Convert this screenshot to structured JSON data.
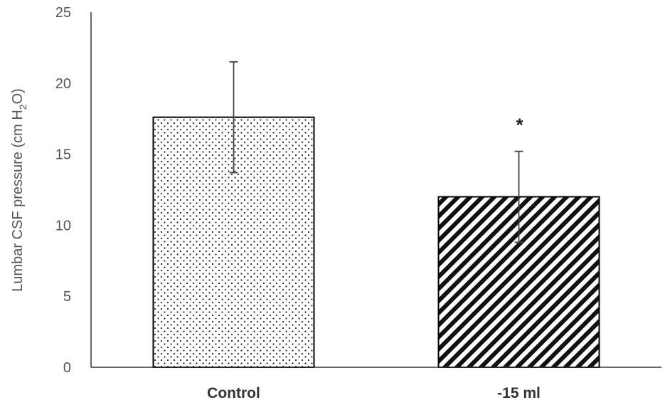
{
  "chart_data": {
    "type": "bar",
    "categories": [
      "Control",
      "-15 ml"
    ],
    "values": [
      17.6,
      12.0
    ],
    "errors": [
      3.9,
      3.2
    ],
    "annotations": [
      "",
      "*"
    ],
    "patterns": [
      "dots",
      "diagonal-stripes"
    ],
    "ylabel_main": "Lumbar CSF pressure (cm H",
    "ylabel_sub": "2",
    "ylabel_end": "O)",
    "ylim": [
      0,
      25
    ],
    "yticks": [
      0,
      5,
      10,
      15,
      20,
      25
    ],
    "grid": false
  }
}
